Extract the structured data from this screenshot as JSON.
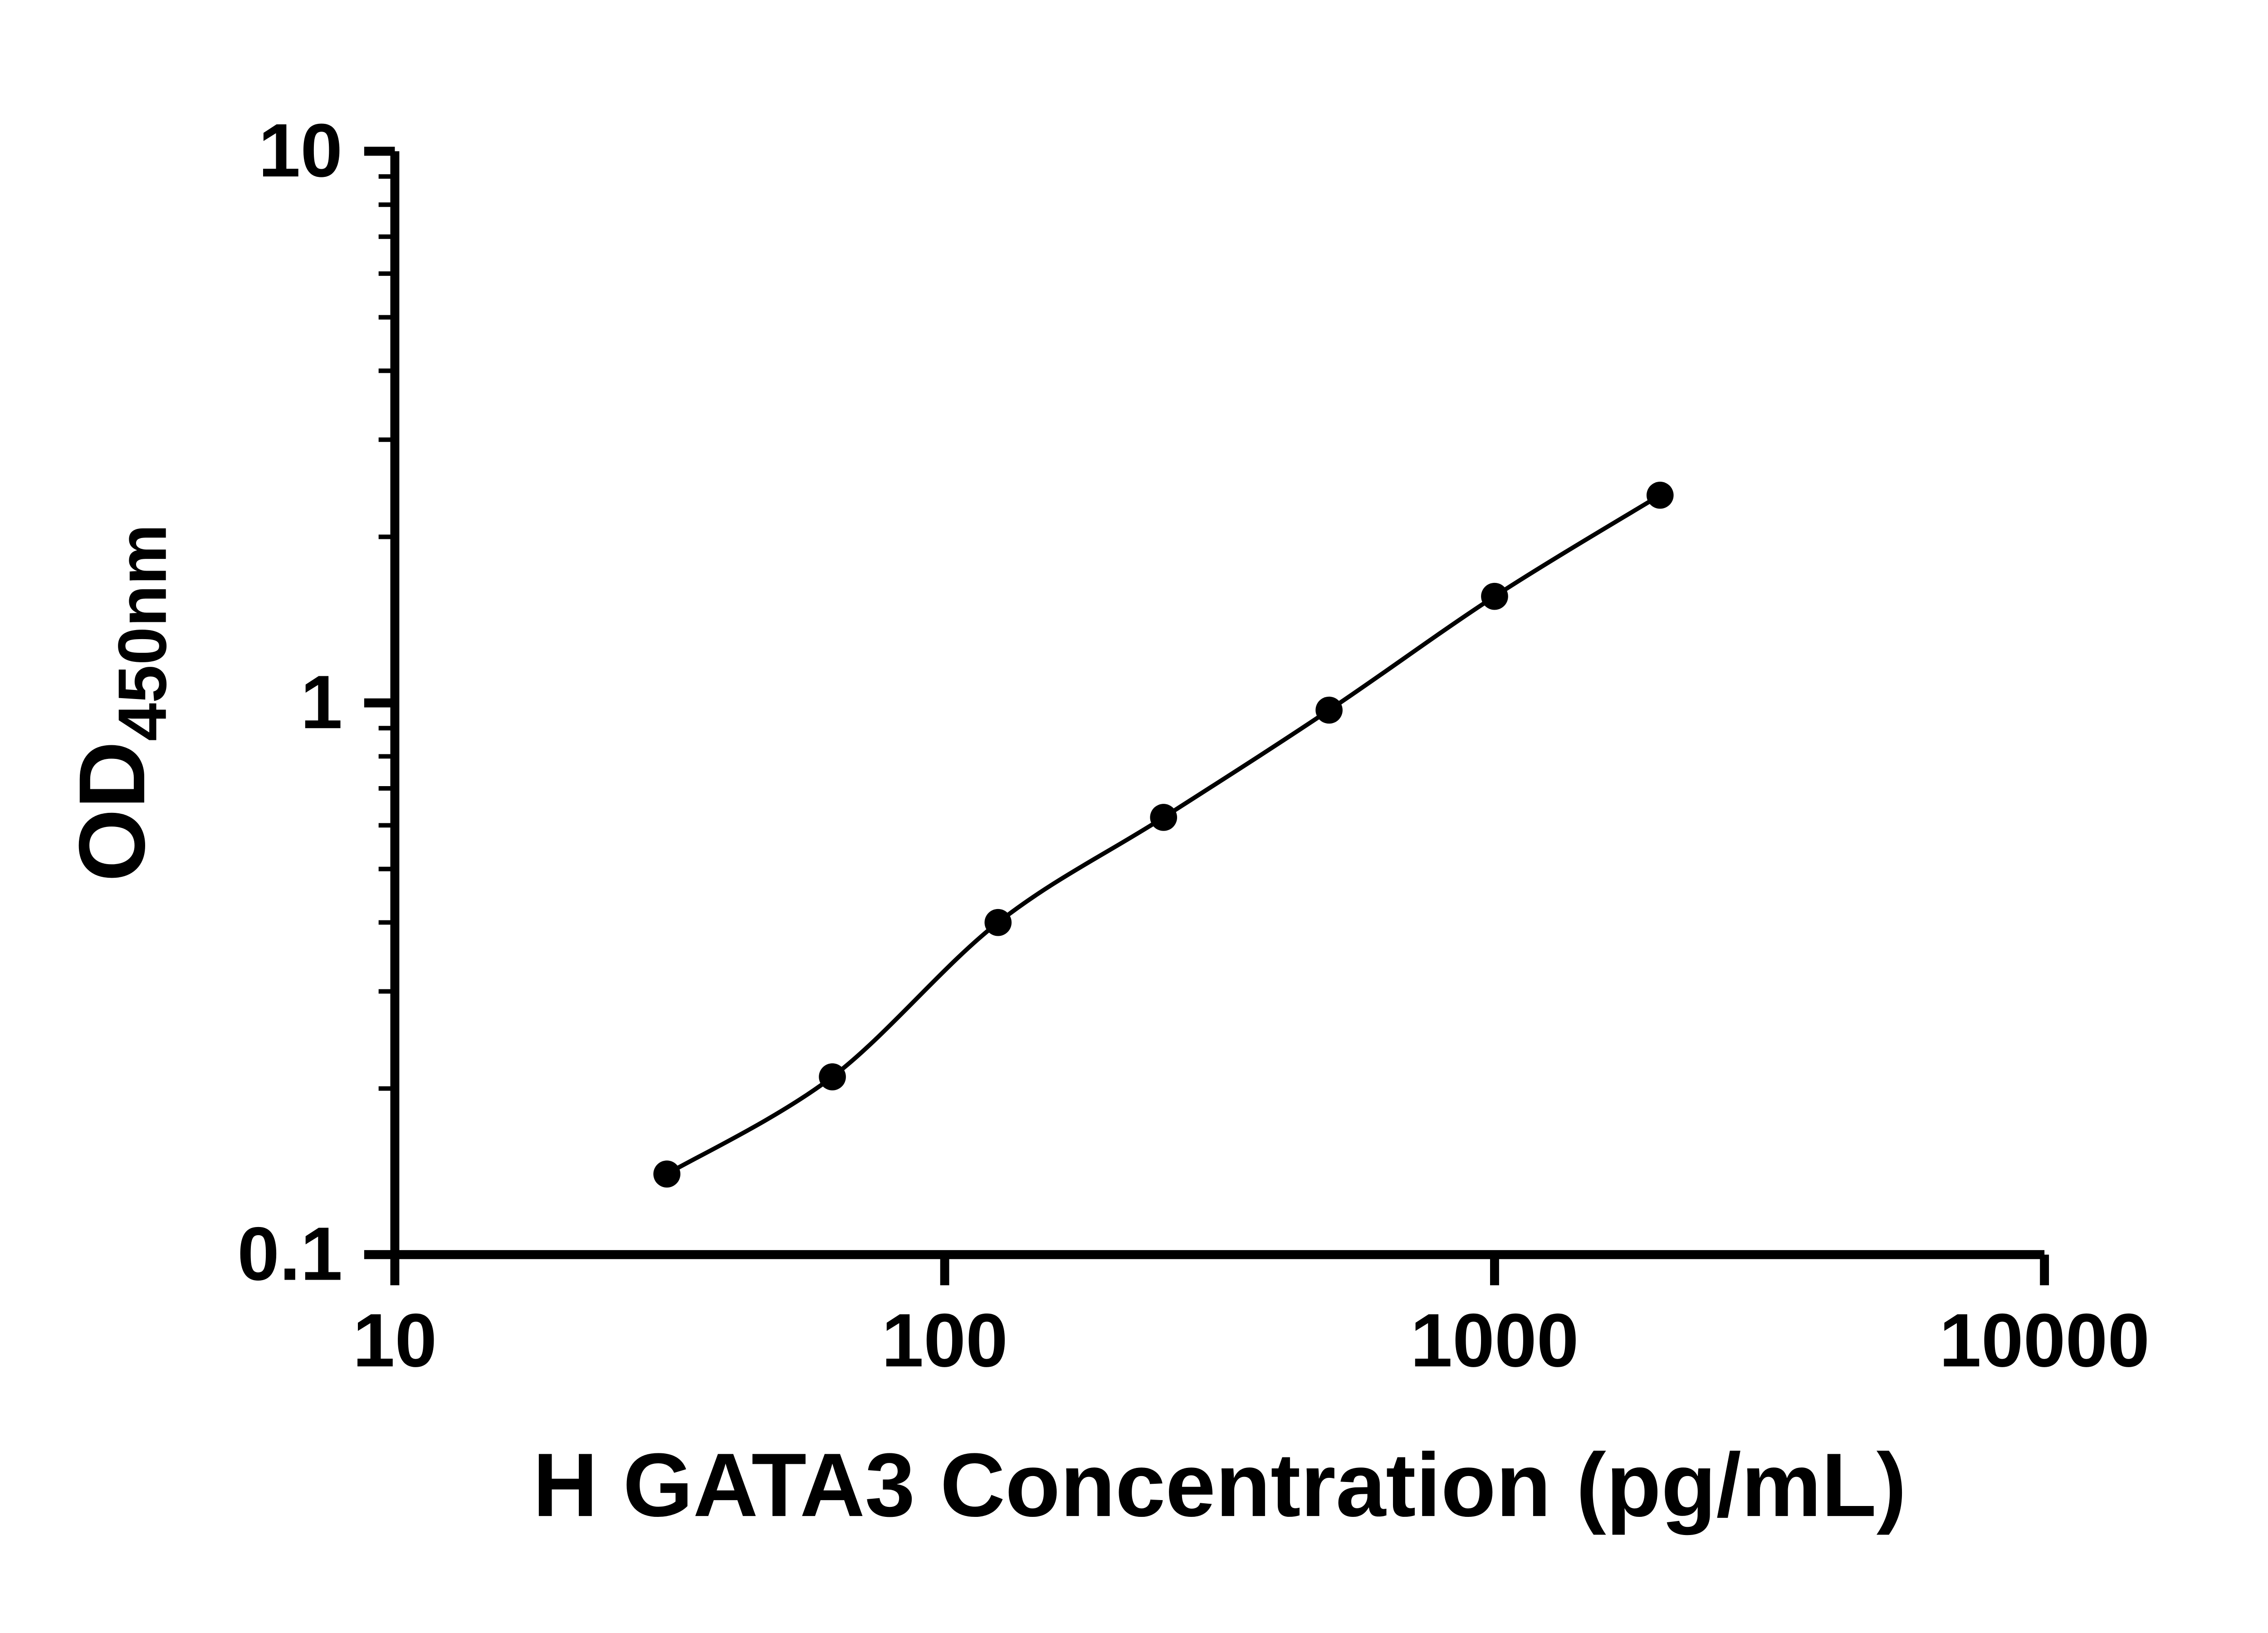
{
  "figure": {
    "background": "#ffffff"
  },
  "chart_data": {
    "type": "scatter",
    "title": "",
    "xlabel": "H GATA3 Concentration (pg/mL)",
    "ylabel": "OD",
    "ylabel_subscript": "450nm",
    "x_scale": "log10",
    "y_scale": "log10",
    "xlim": [
      10,
      10000
    ],
    "ylim": [
      0.1,
      10
    ],
    "x_tick_values": [
      10,
      100,
      1000,
      10000
    ],
    "x_tick_labels": [
      "10",
      "100",
      "1000",
      "10000"
    ],
    "y_tick_values": [
      0.1,
      1,
      10
    ],
    "y_tick_labels": [
      "0.1",
      "1",
      "10"
    ],
    "y_minor_tick_values": [
      0.2,
      0.3,
      0.4,
      0.5,
      0.6,
      0.7,
      0.8,
      0.9,
      2,
      3,
      4,
      5,
      6,
      7,
      8,
      9
    ],
    "grid": false,
    "legend": "none",
    "axis_color": "#000000",
    "series": [
      {
        "name": "standard_curve",
        "marker": "filled-circle",
        "color": "#000000",
        "line": "smooth",
        "points": [
          {
            "x": 31.25,
            "y": 0.14
          },
          {
            "x": 62.5,
            "y": 0.21
          },
          {
            "x": 125,
            "y": 0.4
          },
          {
            "x": 250,
            "y": 0.62
          },
          {
            "x": 500,
            "y": 0.97
          },
          {
            "x": 1000,
            "y": 1.56
          },
          {
            "x": 2000,
            "y": 2.38
          }
        ]
      }
    ]
  }
}
